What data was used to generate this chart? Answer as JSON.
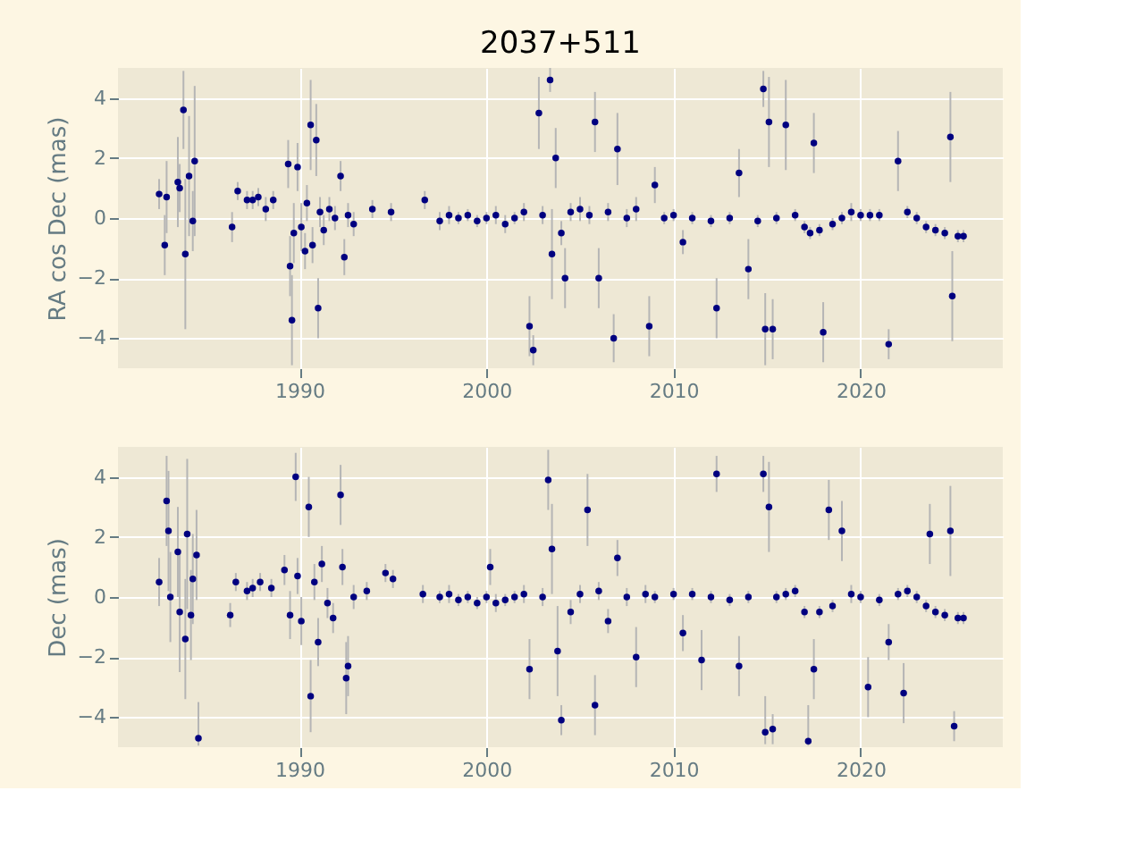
{
  "chart_data": [
    {
      "type": "scatter",
      "title": "2037+511",
      "ylabel": "RA cos Dec (mas)",
      "xlim": [
        1980.3,
        2027.6
      ],
      "xticks": [
        1990,
        2000,
        2010,
        2020
      ],
      "ylim": [
        -5,
        5
      ],
      "yticks": [
        -4,
        -2,
        0,
        2,
        4
      ],
      "grid": true,
      "marker": "circle",
      "series": [
        {
          "color": "#000080",
          "x": [
            1982.5,
            1982.8,
            1982.9,
            1983.5,
            1983.6,
            1983.8,
            1983.9,
            1984.1,
            1984.4,
            1984.3,
            1986.4,
            1986.7,
            1987.2,
            1987.5,
            1987.8,
            1988.2,
            1988.6,
            1989.4,
            1989.5,
            1989.6,
            1989.7,
            1989.9,
            1990.1,
            1990.3,
            1990.4,
            1990.6,
            1990.7,
            1990.9,
            1991.0,
            1991.1,
            1991.3,
            1991.6,
            1991.9,
            1992.2,
            1992.4,
            1992.6,
            1992.9,
            1993.9,
            1994.9,
            1996.7,
            1997.5,
            1998.0,
            1998.5,
            1999.0,
            1999.5,
            2000.0,
            2000.5,
            2001.0,
            2001.5,
            2002.0,
            2002.3,
            2002.5,
            2002.8,
            2003.0,
            2003.4,
            2003.5,
            2003.7,
            2004.0,
            2004.2,
            2004.5,
            2005.0,
            2005.5,
            2005.8,
            2006.0,
            2006.5,
            2006.8,
            2007.0,
            2007.5,
            2008.0,
            2008.7,
            2009.0,
            2009.5,
            2010.0,
            2010.5,
            2011.0,
            2012.0,
            2012.3,
            2013.0,
            2013.5,
            2014.0,
            2014.5,
            2014.8,
            2014.9,
            2015.1,
            2015.3,
            2015.5,
            2016.0,
            2016.5,
            2017.0,
            2017.3,
            2017.5,
            2017.8,
            2018.0,
            2018.5,
            2019.0,
            2019.5,
            2020.0,
            2020.5,
            2021.0,
            2021.5,
            2022.0,
            2022.5,
            2023.0,
            2023.5,
            2024.0,
            2024.5,
            2024.8,
            2024.9,
            2025.2,
            2025.5
          ],
          "values": [
            0.8,
            -0.9,
            0.7,
            1.2,
            1.0,
            3.6,
            -1.2,
            1.4,
            1.9,
            -0.1,
            -0.3,
            0.9,
            0.6,
            0.6,
            0.7,
            0.3,
            0.6,
            1.8,
            -1.6,
            -3.4,
            -0.5,
            1.7,
            -0.3,
            -1.1,
            0.5,
            3.1,
            -0.9,
            2.6,
            -3.0,
            0.2,
            -0.4,
            0.3,
            0.0,
            1.4,
            -1.3,
            0.1,
            -0.2,
            0.3,
            0.2,
            0.6,
            -0.1,
            0.1,
            0.0,
            0.1,
            -0.1,
            0.0,
            0.1,
            -0.2,
            0.0,
            0.2,
            -3.6,
            -4.4,
            3.5,
            0.1,
            4.6,
            -1.2,
            2.0,
            -0.5,
            -2.0,
            0.2,
            0.3,
            0.1,
            3.2,
            -2.0,
            0.2,
            -4.0,
            2.3,
            0.0,
            0.3,
            -3.6,
            1.1,
            0.0,
            0.1,
            -0.8,
            0.0,
            -0.1,
            -3.0,
            0.0,
            1.5,
            -1.7,
            -0.1,
            4.3,
            -3.7,
            3.2,
            -3.7,
            0.0,
            3.1,
            0.1,
            -0.3,
            -0.5,
            2.5,
            -0.4,
            -3.8,
            -0.2,
            0.0,
            0.2,
            0.1,
            0.1,
            0.1,
            -4.2,
            1.9,
            0.2,
            0.0,
            -0.3,
            -0.4,
            -0.5,
            2.7,
            -2.6,
            -0.6,
            -0.6
          ],
          "errors": [
            0.5,
            1.0,
            1.2,
            1.5,
            0.8,
            1.3,
            2.5,
            2.0,
            2.5,
            1.0,
            0.5,
            0.3,
            0.3,
            0.3,
            0.3,
            0.4,
            0.3,
            0.8,
            1.0,
            1.5,
            1.0,
            0.8,
            0.8,
            0.6,
            0.6,
            1.5,
            0.6,
            1.2,
            1.0,
            0.5,
            0.5,
            0.4,
            0.4,
            0.5,
            0.6,
            0.4,
            0.4,
            0.3,
            0.3,
            0.3,
            0.3,
            0.3,
            0.2,
            0.2,
            0.2,
            0.2,
            0.3,
            0.3,
            0.2,
            0.3,
            1.0,
            0.5,
            1.2,
            0.3,
            0.4,
            1.5,
            1.0,
            0.4,
            1.0,
            0.3,
            0.4,
            0.3,
            1.0,
            1.0,
            0.3,
            0.8,
            1.2,
            0.3,
            0.4,
            1.0,
            0.6,
            0.2,
            0.2,
            0.4,
            0.2,
            0.2,
            1.0,
            0.2,
            0.8,
            1.0,
            0.2,
            0.6,
            1.2,
            1.5,
            1.0,
            0.2,
            1.5,
            0.2,
            0.2,
            0.2,
            1.0,
            0.2,
            1.0,
            0.2,
            0.2,
            0.3,
            0.2,
            0.2,
            0.2,
            0.5,
            1.0,
            0.2,
            0.2,
            0.2,
            0.2,
            0.2,
            1.5,
            1.5,
            0.2,
            0.2
          ]
        }
      ]
    },
    {
      "type": "scatter",
      "ylabel": "Dec (mas)",
      "xlim": [
        1980.3,
        2027.6
      ],
      "xticks": [
        1990,
        2000,
        2010,
        2020
      ],
      "ylim": [
        -5,
        5
      ],
      "yticks": [
        -4,
        -2,
        0,
        2,
        4
      ],
      "grid": true,
      "marker": "circle",
      "series": [
        {
          "color": "#000080",
          "x": [
            1982.5,
            1982.9,
            1983.0,
            1983.1,
            1983.5,
            1983.6,
            1983.9,
            1984.0,
            1984.2,
            1984.3,
            1984.5,
            1984.6,
            1986.3,
            1986.6,
            1987.2,
            1987.5,
            1987.9,
            1988.5,
            1989.2,
            1989.5,
            1989.8,
            1989.9,
            1990.1,
            1990.5,
            1990.6,
            1990.8,
            1991.0,
            1991.2,
            1991.5,
            1991.8,
            1992.2,
            1992.3,
            1992.5,
            1992.6,
            1992.9,
            1993.6,
            1994.6,
            1995.0,
            1996.6,
            1997.5,
            1998.0,
            1998.5,
            1999.0,
            1999.5,
            2000.0,
            2000.2,
            2000.5,
            2001.0,
            2001.5,
            2002.0,
            2002.3,
            2003.0,
            2003.3,
            2003.5,
            2003.8,
            2004.0,
            2004.5,
            2005.0,
            2005.4,
            2005.8,
            2006.0,
            2006.5,
            2007.0,
            2007.5,
            2008.0,
            2008.5,
            2009.0,
            2010.0,
            2010.5,
            2011.0,
            2011.5,
            2012.0,
            2012.3,
            2013.0,
            2013.5,
            2014.0,
            2014.8,
            2014.9,
            2015.1,
            2015.3,
            2015.5,
            2016.0,
            2016.5,
            2017.0,
            2017.2,
            2017.5,
            2017.8,
            2018.3,
            2018.5,
            2019.0,
            2019.5,
            2020.0,
            2020.4,
            2021.0,
            2021.5,
            2022.0,
            2022.3,
            2022.5,
            2023.0,
            2023.5,
            2023.7,
            2024.0,
            2024.5,
            2024.8,
            2025.0,
            2025.2,
            2025.5
          ],
          "values": [
            0.5,
            3.2,
            2.2,
            0.0,
            1.5,
            -0.5,
            -1.4,
            2.1,
            -0.6,
            0.6,
            1.4,
            -4.7,
            -0.6,
            0.5,
            0.2,
            0.3,
            0.5,
            0.3,
            0.9,
            -0.6,
            4.0,
            0.7,
            -0.8,
            3.0,
            -3.3,
            0.5,
            -1.5,
            1.1,
            -0.2,
            -0.7,
            3.4,
            1.0,
            -2.7,
            -2.3,
            0.0,
            0.2,
            0.8,
            0.6,
            0.1,
            0.0,
            0.1,
            -0.1,
            0.0,
            -0.2,
            0.0,
            1.0,
            -0.2,
            -0.1,
            0.0,
            0.1,
            -2.4,
            0.0,
            3.9,
            1.6,
            -1.8,
            -4.1,
            -0.5,
            0.1,
            2.9,
            -3.6,
            0.2,
            -0.8,
            1.3,
            0.0,
            -2.0,
            0.1,
            0.0,
            0.1,
            -1.2,
            0.1,
            -2.1,
            0.0,
            4.1,
            -0.1,
            -2.3,
            0.0,
            4.1,
            -4.5,
            3.0,
            -4.4,
            0.0,
            0.1,
            0.2,
            -0.5,
            -4.8,
            -2.4,
            -0.5,
            2.9,
            -0.3,
            2.2,
            0.1,
            0.0,
            -3.0,
            -0.1,
            -1.5,
            0.1,
            -3.2,
            0.2,
            0.0,
            -0.3,
            2.1,
            -0.5,
            -0.6,
            2.2,
            -4.3,
            -0.7,
            -0.7
          ],
          "errors": [
            0.8,
            1.5,
            2.0,
            1.5,
            1.5,
            2.0,
            2.0,
            2.5,
            1.5,
            1.5,
            1.5,
            [
              -4.95,
              -3.5
            ],
            0.4,
            0.3,
            0.3,
            0.3,
            0.3,
            0.3,
            0.5,
            0.8,
            0.8,
            0.6,
            0.8,
            1.0,
            1.2,
            0.6,
            0.8,
            0.6,
            0.5,
            0.5,
            1.0,
            0.6,
            1.2,
            1.0,
            0.4,
            0.3,
            0.3,
            0.3,
            0.3,
            0.2,
            0.3,
            0.2,
            0.2,
            0.2,
            0.2,
            0.6,
            0.3,
            0.2,
            0.2,
            0.3,
            1.0,
            0.3,
            1.0,
            1.5,
            1.5,
            0.5,
            0.4,
            0.3,
            1.2,
            1.0,
            0.3,
            0.4,
            0.6,
            0.3,
            1.0,
            0.3,
            0.2,
            0.2,
            0.6,
            0.2,
            1.0,
            0.2,
            0.6,
            0.2,
            1.0,
            0.2,
            0.6,
            [
              -4.9,
              -3.3
            ],
            1.5,
            0.5,
            0.2,
            0.2,
            0.2,
            0.2,
            [
              -4.95,
              -3.6
            ],
            1.0,
            0.2,
            1.0,
            0.2,
            1.0,
            0.3,
            0.2,
            1.0,
            0.2,
            0.6,
            0.2,
            1.0,
            0.2,
            0.2,
            0.2,
            1.0,
            0.2,
            0.2,
            1.5,
            0.5,
            0.2,
            0.2
          ]
        }
      ]
    }
  ]
}
